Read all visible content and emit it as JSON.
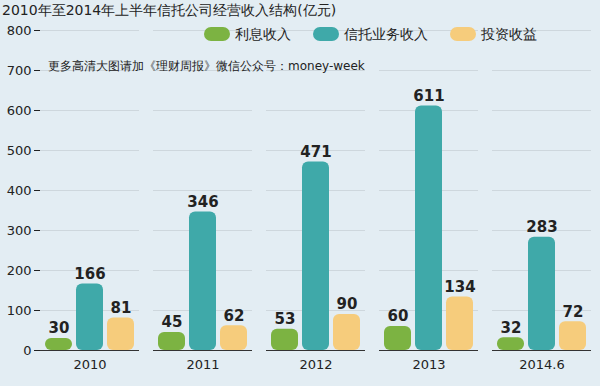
{
  "chart_data": {
    "type": "bar",
    "title": "2010年至2014年上半年信托公司经营收入结构(亿元)",
    "annotations": [
      "更多高清大图请加《理财周报》微信公众号：money-week"
    ],
    "categories": [
      "2010",
      "2011",
      "2012",
      "2013",
      "2014.6"
    ],
    "series": [
      {
        "name": "利息收入",
        "color": "#7cb342",
        "values": [
          30,
          45,
          53,
          60,
          32
        ]
      },
      {
        "name": "信托业务收入",
        "color": "#3fa9a9",
        "values": [
          166,
          346,
          471,
          611,
          283
        ]
      },
      {
        "name": "投资收益",
        "color": "#f6cc7c",
        "values": [
          81,
          62,
          90,
          134,
          72
        ]
      }
    ],
    "ylim": [
      0,
      800
    ],
    "yticks": [
      0,
      100,
      200,
      300,
      400,
      500,
      600,
      700,
      800
    ],
    "grid": true,
    "data_labels": true,
    "legend": "top"
  }
}
